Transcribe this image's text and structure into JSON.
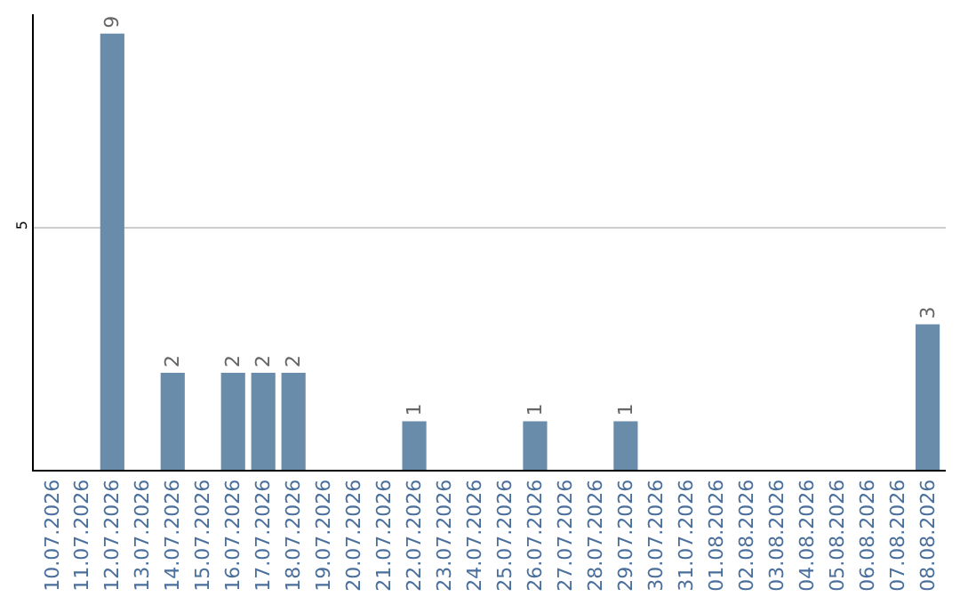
{
  "chart_data": {
    "type": "bar",
    "categories": [
      "10.07.2026",
      "11.07.2026",
      "12.07.2026",
      "13.07.2026",
      "14.07.2026",
      "15.07.2026",
      "16.07.2026",
      "17.07.2026",
      "18.07.2026",
      "19.07.2026",
      "20.07.2026",
      "21.07.2026",
      "22.07.2026",
      "23.07.2026",
      "24.07.2026",
      "25.07.2026",
      "26.07.2026",
      "27.07.2026",
      "28.07.2026",
      "29.07.2026",
      "30.07.2026",
      "31.07.2026",
      "01.08.2026",
      "02.08.2026",
      "03.08.2026",
      "04.08.2026",
      "05.08.2026",
      "06.08.2026",
      "07.08.2026",
      "08.08.2026"
    ],
    "values": [
      null,
      null,
      9,
      null,
      2,
      null,
      2,
      2,
      2,
      null,
      null,
      null,
      1,
      null,
      null,
      null,
      1,
      null,
      null,
      1,
      null,
      null,
      null,
      null,
      null,
      null,
      null,
      null,
      null,
      3
    ],
    "color": "#6a8cab",
    "ylim": [
      0,
      9.4
    ],
    "yticks": [
      5
    ],
    "grid": "y",
    "data_labels": true,
    "legend": false
  }
}
